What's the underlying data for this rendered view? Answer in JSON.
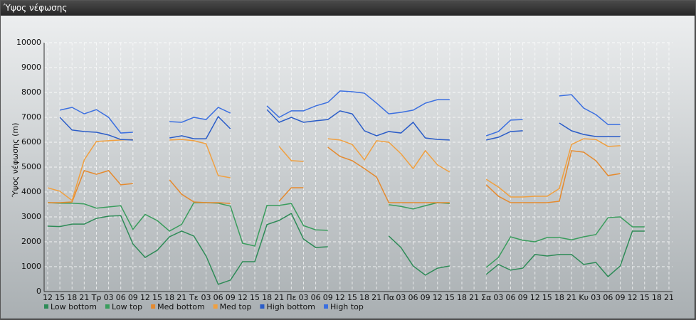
{
  "chart_data": {
    "type": "line",
    "title": "Ύψος νέφωσης",
    "y_label": "Ύψος νέφωσης (m)",
    "categories": [
      "12",
      "15",
      "18",
      "21",
      "Τρ",
      "03",
      "06",
      "09",
      "12",
      "15",
      "18",
      "21",
      "Τε",
      "03",
      "06",
      "09",
      "12",
      "15",
      "18",
      "21",
      "Πε",
      "03",
      "06",
      "09",
      "12",
      "15",
      "18",
      "21",
      "Πα",
      "03",
      "06",
      "09",
      "12",
      "15",
      "18",
      "21",
      "Σα",
      "03",
      "06",
      "09",
      "12",
      "15",
      "18",
      "21",
      "Κυ",
      "03",
      "06",
      "09",
      "12",
      "15",
      "18",
      "21"
    ],
    "ylim": [
      0,
      10000
    ],
    "yticks": [
      0,
      1000,
      2000,
      3000,
      4000,
      5000,
      6000,
      7000,
      8000,
      9000,
      10000
    ],
    "grid": true,
    "series": [
      {
        "name": "Low bottom",
        "color": "#2e8b57",
        "values": [
          2630,
          2610,
          2710,
          2710,
          2940,
          3030,
          3050,
          1910,
          1370,
          1660,
          2200,
          2430,
          2230,
          1430,
          290,
          460,
          1200,
          1200,
          2690,
          2860,
          3140,
          2110,
          1770,
          1800,
          null,
          null,
          null,
          null,
          2230,
          1770,
          1030,
          660,
          940,
          1030,
          null,
          null,
          690,
          1090,
          860,
          940,
          1490,
          1430,
          1490,
          1490,
          1090,
          1170,
          600,
          1030,
          2430,
          2430,
          null,
          null
        ]
      },
      {
        "name": "Low top",
        "color": "#3a9d5d",
        "values": [
          3570,
          3550,
          3550,
          3520,
          3350,
          3400,
          3450,
          2500,
          3100,
          2850,
          2430,
          2700,
          3570,
          3570,
          3550,
          3430,
          1940,
          1830,
          3460,
          3460,
          3540,
          2650,
          2480,
          2460,
          null,
          null,
          null,
          null,
          3490,
          3420,
          3320,
          3450,
          3570,
          3540,
          null,
          null,
          970,
          1370,
          2200,
          2060,
          2000,
          2170,
          2170,
          2080,
          2200,
          2290,
          2970,
          3000,
          2600,
          2600,
          null,
          null
        ]
      },
      {
        "name": "Med bottom",
        "color": "#e58a2e",
        "values": [
          3570,
          3570,
          3600,
          4860,
          4710,
          4860,
          4290,
          4340,
          null,
          null,
          4490,
          3910,
          3600,
          3570,
          3570,
          3540,
          null,
          null,
          null,
          3630,
          4170,
          4170,
          null,
          5800,
          5430,
          5260,
          4940,
          4600,
          3570,
          3570,
          3570,
          3570,
          3570,
          3570,
          null,
          null,
          4290,
          3830,
          3570,
          3570,
          3570,
          3570,
          3630,
          5660,
          5600,
          5260,
          4660,
          4740,
          null,
          null,
          null,
          null
        ]
      },
      {
        "name": "Med top",
        "color": "#f0a040",
        "values": [
          4170,
          4030,
          3660,
          5290,
          6030,
          6060,
          6090,
          6110,
          null,
          null,
          6090,
          6110,
          6060,
          5940,
          4660,
          4570,
          null,
          null,
          null,
          5830,
          5260,
          5230,
          null,
          6140,
          6090,
          5910,
          5290,
          6060,
          6000,
          5540,
          4940,
          5660,
          5090,
          4800,
          null,
          null,
          4510,
          4200,
          3800,
          3800,
          3830,
          3830,
          4140,
          5910,
          6140,
          6110,
          5830,
          5860,
          null,
          null,
          null,
          null
        ]
      },
      {
        "name": "High bottom",
        "color": "#2a5cc8",
        "values": [
          null,
          7000,
          6490,
          6430,
          6400,
          6290,
          6110,
          6090,
          null,
          null,
          6170,
          6260,
          6140,
          6140,
          7030,
          6540,
          null,
          null,
          7310,
          6800,
          7000,
          6800,
          6860,
          6910,
          7260,
          7140,
          6460,
          6260,
          6430,
          6370,
          6800,
          6170,
          6110,
          6090,
          null,
          null,
          6090,
          6200,
          6430,
          6460,
          null,
          null,
          6770,
          6460,
          6310,
          6230,
          6230,
          6230,
          null,
          null,
          null,
          null
        ]
      },
      {
        "name": "High top",
        "color": "#3b6fe0",
        "values": [
          null,
          7290,
          7400,
          7140,
          7310,
          7000,
          6370,
          6400,
          null,
          null,
          6830,
          6800,
          7000,
          6910,
          7400,
          7170,
          null,
          null,
          7460,
          7000,
          7260,
          7260,
          7460,
          7600,
          8060,
          8030,
          7970,
          7570,
          7140,
          7200,
          7290,
          7570,
          7710,
          7710,
          null,
          null,
          6260,
          6430,
          6890,
          6910,
          null,
          null,
          7860,
          7910,
          7370,
          7110,
          6710,
          6710,
          null,
          null,
          null,
          null
        ]
      }
    ]
  }
}
